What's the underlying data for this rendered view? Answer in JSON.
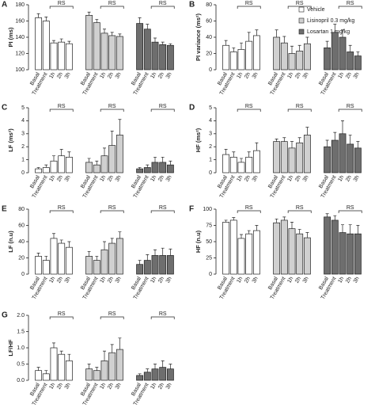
{
  "legend": [
    {
      "name": "Vehicle",
      "color": "#ffffff"
    },
    {
      "name": "Lisinopril 0.3 mg/kg",
      "color": "#d0d0d0"
    },
    {
      "name": "Losartan 1 mg/kg",
      "color": "#6e6e6e"
    }
  ],
  "chart_data": [
    {
      "type": "bar",
      "label": "A",
      "ylabel": "PI (ms)",
      "categories": [
        "Basal",
        "Treatment",
        "1h",
        "2h",
        "3h"
      ],
      "ylim": [
        100,
        180
      ],
      "yticks": [
        100,
        120,
        140,
        160,
        180
      ],
      "annotations": [
        "RS",
        "RS",
        "RS"
      ],
      "series": [
        {
          "color": "#ffffff",
          "values": [
            164,
            160,
            133,
            134,
            132
          ],
          "errors": [
            5,
            5,
            3,
            4,
            3
          ]
        },
        {
          "color": "#d0d0d0",
          "values": [
            167,
            158,
            145,
            142,
            141
          ],
          "errors": [
            4,
            4,
            5,
            4,
            3
          ]
        },
        {
          "color": "#6e6e6e",
          "values": [
            157,
            150,
            134,
            131,
            130
          ],
          "errors": [
            7,
            6,
            5,
            3,
            2
          ]
        }
      ]
    },
    {
      "type": "bar",
      "label": "B",
      "ylabel": "PI variance (ms²)",
      "categories": [
        "Basal",
        "Treatment",
        "1h",
        "2h",
        "3h"
      ],
      "ylim": [
        0,
        80
      ],
      "yticks": [
        0,
        20,
        40,
        60,
        80
      ],
      "annotations": [
        "RS",
        "RS",
        "RS"
      ],
      "series": [
        {
          "color": "#ffffff",
          "values": [
            30,
            22,
            25,
            35,
            42
          ],
          "errors": [
            6,
            5,
            8,
            11,
            7
          ]
        },
        {
          "color": "#d0d0d0",
          "values": [
            40,
            33,
            20,
            23,
            32
          ],
          "errors": [
            9,
            8,
            9,
            7,
            8
          ]
        },
        {
          "color": "#6e6e6e",
          "values": [
            27,
            46,
            40,
            22,
            17
          ],
          "errors": [
            8,
            10,
            9,
            8,
            5
          ]
        }
      ]
    },
    {
      "type": "bar",
      "label": "C",
      "ylabel": "LF (ms²)",
      "categories": [
        "Basal",
        "Treatment",
        "1h",
        "2h",
        "3h"
      ],
      "ylim": [
        0,
        5
      ],
      "yticks": [
        0,
        1,
        2,
        3,
        4,
        5
      ],
      "annotations": [
        "RS",
        "RS",
        "RS"
      ],
      "series": [
        {
          "color": "#ffffff",
          "values": [
            0.3,
            0.4,
            0.9,
            1.3,
            1.2
          ],
          "errors": [
            0.1,
            0.2,
            0.4,
            0.5,
            0.4
          ]
        },
        {
          "color": "#d0d0d0",
          "values": [
            0.8,
            0.6,
            1.3,
            2.1,
            2.9
          ],
          "errors": [
            0.3,
            0.3,
            0.6,
            1.1,
            1.2
          ]
        },
        {
          "color": "#6e6e6e",
          "values": [
            0.3,
            0.4,
            0.8,
            0.8,
            0.6
          ],
          "errors": [
            0.1,
            0.2,
            0.4,
            0.4,
            0.3
          ]
        }
      ]
    },
    {
      "type": "bar",
      "label": "D",
      "ylabel": "HF (ms²)",
      "categories": [
        "Basal",
        "Treatment",
        "1h",
        "2h",
        "3h"
      ],
      "ylim": [
        0,
        5
      ],
      "yticks": [
        0,
        1,
        2,
        3,
        4,
        5
      ],
      "annotations": [
        "RS",
        "RS",
        "RS"
      ],
      "series": [
        {
          "color": "#ffffff",
          "values": [
            1.4,
            1.2,
            0.8,
            1.2,
            1.7
          ],
          "errors": [
            0.4,
            0.4,
            0.3,
            0.4,
            0.6
          ]
        },
        {
          "color": "#d0d0d0",
          "values": [
            2.4,
            2.4,
            1.9,
            2.3,
            2.9
          ],
          "errors": [
            0.2,
            0.3,
            0.5,
            0.4,
            0.6
          ]
        },
        {
          "color": "#6e6e6e",
          "values": [
            2.0,
            2.5,
            3.0,
            2.2,
            1.9
          ],
          "errors": [
            0.5,
            0.6,
            1.0,
            0.7,
            0.5
          ]
        }
      ]
    },
    {
      "type": "bar",
      "label": "E",
      "ylabel": "LF (n.u)",
      "categories": [
        "Basal",
        "Treatment",
        "1h",
        "2h",
        "3h"
      ],
      "ylim": [
        0,
        80
      ],
      "yticks": [
        0,
        20,
        40,
        60,
        80
      ],
      "annotations": [
        "RS",
        "RS",
        "RS"
      ],
      "series": [
        {
          "color": "#ffffff",
          "values": [
            22,
            17,
            44,
            38,
            33
          ],
          "errors": [
            4,
            5,
            6,
            4,
            7
          ]
        },
        {
          "color": "#d0d0d0",
          "values": [
            22,
            17,
            30,
            38,
            44
          ],
          "errors": [
            6,
            5,
            10,
            6,
            8
          ]
        },
        {
          "color": "#6e6e6e",
          "values": [
            12,
            17,
            23,
            23,
            23
          ],
          "errors": [
            5,
            7,
            7,
            9,
            8
          ]
        }
      ]
    },
    {
      "type": "bar",
      "label": "F",
      "ylabel": "HF (n.u)",
      "categories": [
        "Basal",
        "Treatment",
        "1h",
        "2h",
        "3h"
      ],
      "ylim": [
        0,
        100
      ],
      "yticks": [
        0,
        25,
        50,
        75,
        100
      ],
      "annotations": [
        "RS",
        "RS",
        "RS"
      ],
      "series": [
        {
          "color": "#ffffff",
          "values": [
            80,
            83,
            55,
            62,
            67
          ],
          "errors": [
            3,
            4,
            6,
            5,
            8
          ]
        },
        {
          "color": "#d0d0d0",
          "values": [
            79,
            83,
            70,
            62,
            56
          ],
          "errors": [
            6,
            5,
            10,
            7,
            8
          ]
        },
        {
          "color": "#6e6e6e",
          "values": [
            88,
            83,
            64,
            62,
            62
          ],
          "errors": [
            5,
            7,
            12,
            14,
            13
          ]
        }
      ]
    },
    {
      "type": "bar",
      "label": "G",
      "ylabel": "LF/HF",
      "categories": [
        "Basal",
        "Treatment",
        "1h",
        "2h",
        "3h"
      ],
      "ylim": [
        0,
        2.0
      ],
      "yticks": [
        {
          "value": 0,
          "label": "0.0"
        },
        0.5,
        {
          "value": 1,
          "label": "1.0"
        },
        1.5,
        {
          "value": 2,
          "label": "2.0"
        }
      ],
      "annotations": [
        "RS",
        "RS",
        "RS"
      ],
      "series": [
        {
          "color": "#ffffff",
          "values": [
            0.3,
            0.2,
            1.0,
            0.8,
            0.6
          ],
          "errors": [
            0.1,
            0.1,
            0.15,
            0.1,
            0.2
          ]
        },
        {
          "color": "#d0d0d0",
          "values": [
            0.35,
            0.3,
            0.6,
            0.85,
            0.95
          ],
          "errors": [
            0.15,
            0.1,
            0.3,
            0.25,
            0.35
          ]
        },
        {
          "color": "#6e6e6e",
          "values": [
            0.15,
            0.25,
            0.35,
            0.4,
            0.35
          ],
          "errors": [
            0.05,
            0.1,
            0.15,
            0.2,
            0.15
          ]
        }
      ]
    }
  ]
}
